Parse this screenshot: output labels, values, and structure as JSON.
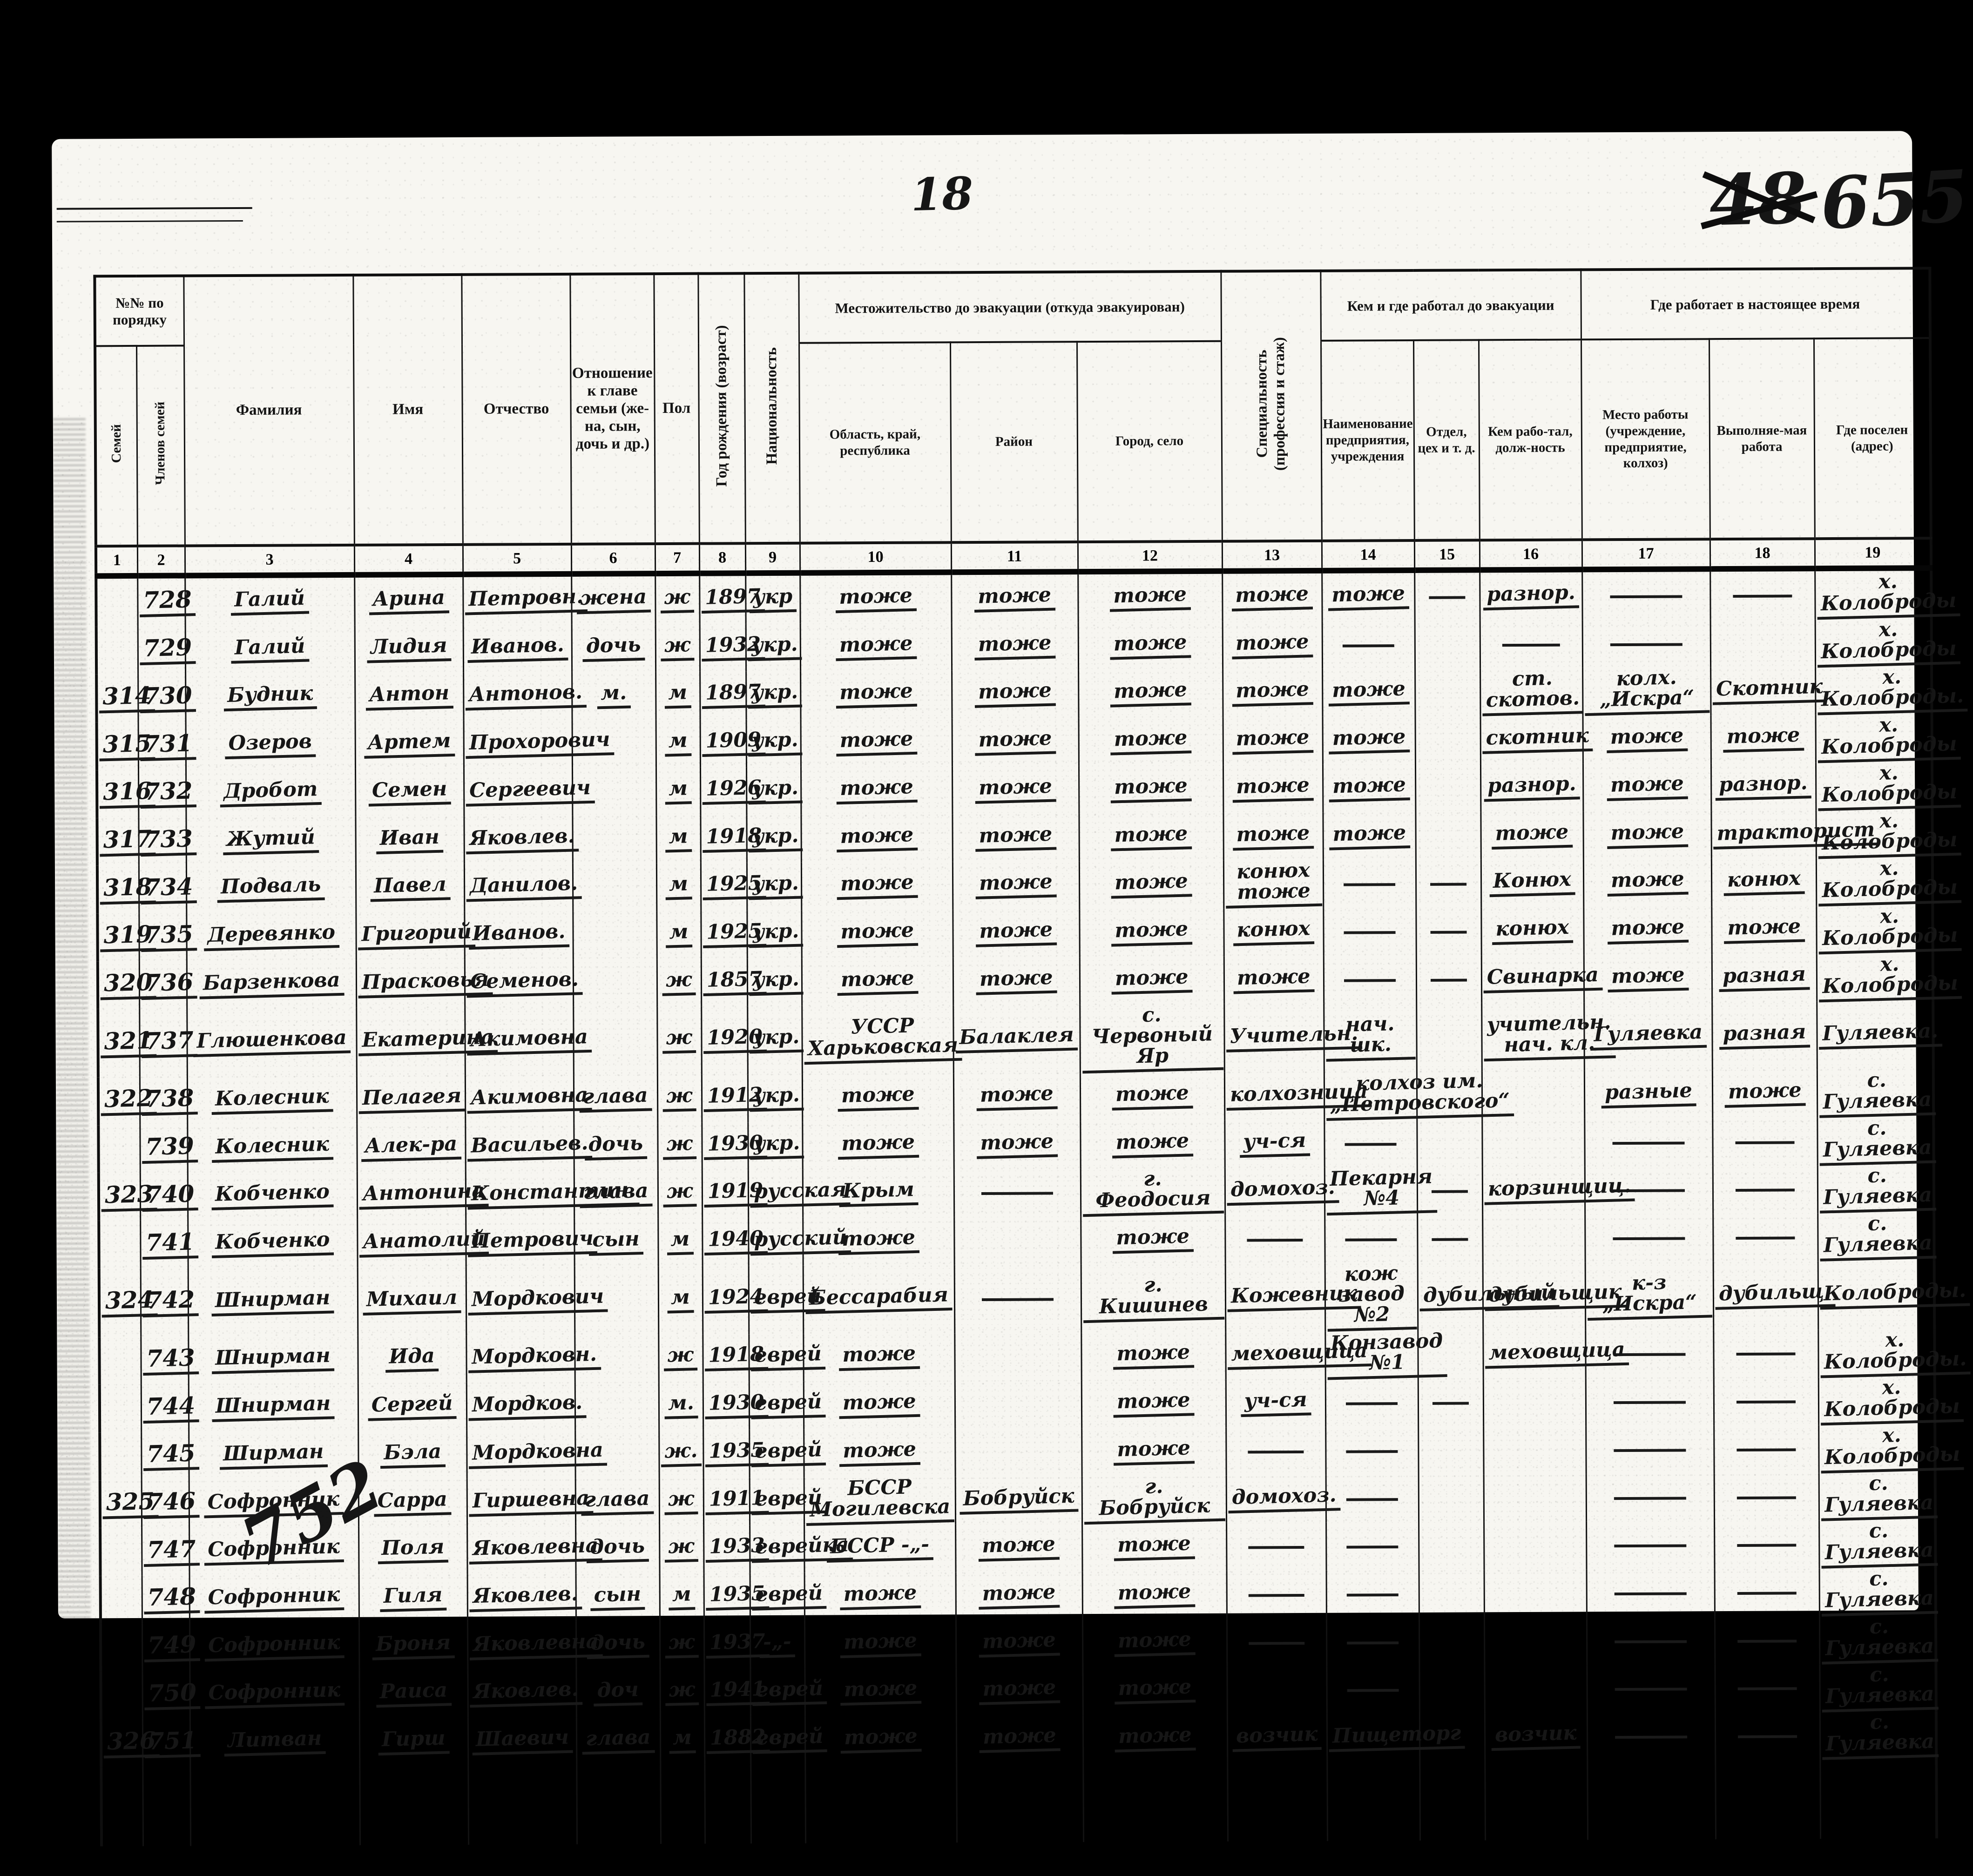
{
  "annotations": {
    "page_number": "18",
    "crossed_out_number": "48",
    "folio_number": "655",
    "next_entry_number": "752"
  },
  "table": {
    "header": {
      "order_group": "№№ по порядку",
      "order_family": "Семей",
      "order_members": "Членов семей",
      "surname": "Фамилия",
      "name": "Имя",
      "patronymic": "Отчество",
      "relation": "Отношение к главе семьи (же-на, сын, дочь и др.)",
      "sex": "Пол",
      "birth": "Год рождения (возраст)",
      "nationality": "Национальность",
      "residence_group": "Местожительство до эвакуации (откуда эвакуирован)",
      "region": "Область, край, республика",
      "district": "Район",
      "city": "Город, село",
      "specialty": "Специальность (профессия и стаж)",
      "work_before_group": "Кем и где работал до эвакуации",
      "enterprise": "Наименование предприятия, учреждения",
      "department": "Отдел, цех и т. д.",
      "position": "Кем рабо-тал, долж-ность",
      "work_now_group": "Где работает в настоящее время",
      "workplace_now": "Место работы (учреждение, предприятие, колхоз)",
      "work_now": "Выполняе-мая работа",
      "settled": "Где поселен (адрес)"
    },
    "col_numbers": [
      "1",
      "2",
      "3",
      "4",
      "5",
      "6",
      "7",
      "8",
      "9",
      "10",
      "11",
      "12",
      "13",
      "14",
      "15",
      "16",
      "17",
      "18",
      "19"
    ],
    "field_order": [
      "family_no",
      "member_no",
      "surname",
      "name",
      "patronymic",
      "relation",
      "sex",
      "birth_year",
      "nationality",
      "region",
      "district",
      "city",
      "specialty",
      "enterprise",
      "department",
      "position",
      "workplace_now",
      "work_now",
      "settled"
    ],
    "rows": [
      [
        "",
        "728",
        "Галий",
        "Арина",
        "Петровн.",
        "жена",
        "ж",
        "1897",
        "укр",
        "тоже",
        "тоже",
        "тоже",
        "тоже",
        "тоже",
        "—",
        "разнор.",
        "—",
        "—",
        "х. Колоброды"
      ],
      [
        "",
        "729",
        "Галий",
        "Лидия",
        "Иванов.",
        "дочь",
        "ж",
        "1932",
        "укр.",
        "тоже",
        "тоже",
        "тоже",
        "тоже",
        "—",
        "",
        "—",
        "—",
        "",
        "х. Колоброды"
      ],
      [
        "314",
        "730",
        "Будник",
        "Антон",
        "Антонов.",
        "м.",
        "м",
        "1897",
        "укр.",
        "тоже",
        "тоже",
        "тоже",
        "тоже",
        "тоже",
        "",
        "ст. скотов.",
        "колх. „Искра“",
        "Скотник",
        "х. Колоброды."
      ],
      [
        "315",
        "731",
        "Озеров",
        "Артем",
        "Прохорович",
        "",
        "м",
        "1909",
        "укр.",
        "тоже",
        "тоже",
        "тоже",
        "тоже",
        "тоже",
        "",
        "скотник",
        "тоже",
        "тоже",
        "х. Колоброды"
      ],
      [
        "316",
        "732",
        "Дробот",
        "Семен",
        "Сергеевич",
        "",
        "м",
        "1926",
        "укр.",
        "тоже",
        "тоже",
        "тоже",
        "тоже",
        "тоже",
        "",
        "разнор.",
        "тоже",
        "разнор.",
        "х. Колоброды"
      ],
      [
        "317",
        "733",
        "Жутий",
        "Иван",
        "Яковлев.",
        "",
        "м",
        "1918",
        "укр.",
        "тоже",
        "тоже",
        "тоже",
        "тоже",
        "тоже",
        "",
        "тоже",
        "тоже",
        "тракторист",
        "х. Колоброды"
      ],
      [
        "318",
        "734",
        "Подваль",
        "Павел",
        "Данилов.",
        "",
        "м",
        "1925",
        "укр.",
        "тоже",
        "тоже",
        "тоже",
        "конюх тоже",
        "—",
        "—",
        "Конюх",
        "тоже",
        "конюх",
        "х. Колоброды"
      ],
      [
        "319",
        "735",
        "Деревянко",
        "Григорий",
        "Иванов.",
        "",
        "м",
        "1925",
        "укр.",
        "тоже",
        "тоже",
        "тоже",
        "конюх",
        "—",
        "—",
        "конюх",
        "тоже",
        "тоже",
        "х. Колоброды"
      ],
      [
        "320",
        "736",
        "Барзенкова",
        "Прасковья",
        "Семенов.",
        "",
        "ж",
        "1857",
        "укр.",
        "тоже",
        "тоже",
        "тоже",
        "тоже",
        "—",
        "—",
        "Свинарка",
        "тоже",
        "разная",
        "х. Колоброды"
      ],
      [
        "321",
        "737",
        "Глюшенкова",
        "Екатерина",
        "Акимовна",
        "",
        "ж",
        "1920",
        "укр.",
        "УССР Харьковская",
        "Балаклея",
        "с. Червоный Яр",
        "Учительн.",
        "нач. шк.",
        "",
        "учительн. нач. кл.",
        "Гуляевка",
        "разная",
        "Гуляевка."
      ],
      [
        "322",
        "738",
        "Колесник",
        "Пелагея",
        "Акимовна",
        "глава",
        "ж",
        "1912",
        "укр.",
        "тоже",
        "тоже",
        "тоже",
        "колхозница",
        "колхоз им. „Петровского“",
        "",
        "",
        "разные",
        "тоже",
        "с. Гуляевка"
      ],
      [
        "",
        "739",
        "Колесник",
        "Алек-ра",
        "Васильев.",
        "дочь",
        "ж",
        "1930",
        "укр.",
        "тоже",
        "тоже",
        "тоже",
        "уч-ся",
        "—",
        "",
        "",
        "—",
        "—",
        "с. Гуляевка"
      ],
      [
        "323",
        "740",
        "Кобченко",
        "Антонина",
        "Константин.",
        "глава",
        "ж",
        "1919",
        "русская",
        "Крым",
        "—",
        "г. Феодосия",
        "домохоз.",
        "Пекарня №4",
        "—",
        "корзинщиц.",
        "—",
        "—",
        "с. Гуляевка"
      ],
      [
        "",
        "741",
        "Кобченко",
        "Анатолий",
        "Петрович",
        "сын",
        "м",
        "1940",
        "русский",
        "тоже",
        "",
        "тоже",
        "—",
        "—",
        "—",
        "",
        "—",
        "—",
        "с. Гуляевка"
      ],
      [
        "324",
        "742",
        "Шнирман",
        "Михаил",
        "Мордкович",
        "",
        "м",
        "1924",
        "еврей",
        "Бессарабия",
        "—",
        "г. Кишинев",
        "Кожевник",
        "кож завод №2",
        "дубильный",
        "дубильщик",
        "к-з „Искра“",
        "дубильщ.",
        "Колоброды."
      ],
      [
        "",
        "743",
        "Шнирман",
        "Ида",
        "Мордковн.",
        "",
        "ж",
        "1918",
        "еврей",
        "тоже",
        "",
        "тоже",
        "меховщица",
        "Конзавод №1",
        "",
        "меховщица",
        "—",
        "—",
        "х. Колоброды."
      ],
      [
        "",
        "744",
        "Шнирман",
        "Сергей",
        "Мордков.",
        "",
        "м.",
        "1930",
        "еврей",
        "тоже",
        "",
        "тоже",
        "уч-ся",
        "—",
        "—",
        "",
        "—",
        "—",
        "х. Колоброды"
      ],
      [
        "",
        "745",
        "Ширман",
        "Бэла",
        "Мордковна",
        "",
        "ж.",
        "1935",
        "еврей",
        "тоже",
        "",
        "тоже",
        "—",
        "—",
        "",
        "",
        "—",
        "—",
        "х. Колоброды"
      ],
      [
        "325",
        "746",
        "Софронник",
        "Сарра",
        "Гиршевна",
        "глава",
        "ж",
        "1911",
        "еврей",
        "БССР Могилевска",
        "Бобруйск",
        "г. Бобруйск",
        "домохоз.",
        "—",
        "",
        "",
        "—",
        "—",
        "с. Гуляевка"
      ],
      [
        "",
        "747",
        "Софронник",
        "Поля",
        "Яковлевна",
        "дочь",
        "ж",
        "1933",
        "еврейка",
        "БССР -„-",
        "тоже",
        "тоже",
        "—",
        "—",
        "",
        "",
        "—",
        "—",
        "с. Гуляевка"
      ],
      [
        "",
        "748",
        "Софронник",
        "Гиля",
        "Яковлев.",
        "сын",
        "м",
        "1935",
        "еврей",
        "тоже",
        "тоже",
        "тоже",
        "—",
        "—",
        "",
        "",
        "—",
        "—",
        "с. Гуляевка"
      ],
      [
        "",
        "749",
        "Софронник",
        "Броня",
        "Яковлевна",
        "дочь",
        "ж",
        "1937",
        "-„-",
        "тоже",
        "тоже",
        "тоже",
        "—",
        "—",
        "",
        "",
        "—",
        "—",
        "с. Гуляевка"
      ],
      [
        "",
        "750",
        "Софронник",
        "Раиса",
        "Яковлев.",
        "доч",
        "ж",
        "1941",
        "еврей",
        "тоже",
        "тоже",
        "тоже",
        "",
        "—",
        "",
        "",
        "—",
        "—",
        "с. Гуляевка"
      ],
      [
        "326",
        "751",
        "Литван",
        "Гирш",
        "Шаевич",
        "глава",
        "м",
        "1882",
        "еврей",
        "тоже",
        "тоже",
        "тоже",
        "возчик",
        "Пищеторг",
        "",
        "возчик",
        "—",
        "—",
        "с. Гуляевка"
      ]
    ]
  }
}
